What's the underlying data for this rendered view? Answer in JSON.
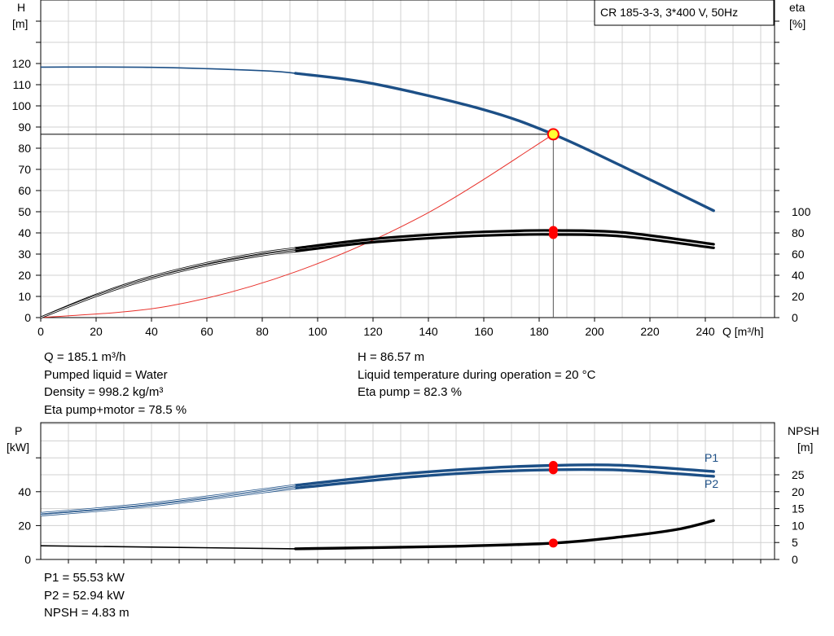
{
  "title_box": "CR 185-3-3, 3*400 V, 50Hz",
  "colors": {
    "head": "#1c4f86",
    "power": "#1c4f86",
    "efficiency": "#000000",
    "npsh": "#000000",
    "system": "#e8302a",
    "duty_point": "#ff0000",
    "duty_point_fill": "#ffff33",
    "grid": "#d0d0d0"
  },
  "labels": {
    "h_axis": "H",
    "h_unit": "[m]",
    "eta_axis": "eta",
    "eta_unit": "[%]",
    "q_axis": "Q [m³/h]",
    "p_axis": "P",
    "p_unit": "[kW]",
    "npsh_axis": "NPSH",
    "npsh_unit": "[m]",
    "p1": "P1",
    "p2": "P2"
  },
  "info_top_left": [
    "Q = 185.1 m³/h",
    "Pumped liquid = Water",
    "Density = 998.2 kg/m³",
    "Eta pump+motor = 78.5 %"
  ],
  "info_top_right": [
    "H = 86.57 m",
    "Liquid temperature during operation = 20 °C",
    "Eta pump = 82.3 %"
  ],
  "info_bottom": [
    "P1 = 55.53 kW",
    "P2 = 52.94 kW",
    "NPSH = 4.83 m"
  ],
  "chart_data": [
    {
      "type": "line",
      "title": "CR 185-3-3, 3*400 V, 50Hz",
      "xlabel": "Q [m³/h]",
      "ylabel": "H [m]",
      "y2label": "eta [%]",
      "xlim": [
        0,
        260
      ],
      "ylim": [
        0,
        120
      ],
      "y2lim": [
        0,
        100
      ],
      "x_ticks": [
        0,
        20,
        40,
        60,
        80,
        100,
        120,
        140,
        160,
        180,
        200,
        220,
        240
      ],
      "y_ticks": [
        0,
        10,
        20,
        30,
        40,
        50,
        60,
        70,
        80,
        90,
        100,
        110,
        120
      ],
      "y2_ticks": [
        0,
        20,
        40,
        60,
        80,
        100
      ],
      "grid": true,
      "duty_point": {
        "x": 185.1,
        "y": 86.57
      },
      "series": [
        {
          "axis": "H",
          "x": [
            0,
            40,
            80,
            92,
            120,
            160,
            185.1,
            210,
            243
          ],
          "y": [
            118.3,
            118.2,
            116.6,
            115.4,
            110.5,
            98.2,
            86.57,
            71.5,
            50.5
          ],
          "thin_until": 92
        },
        {
          "axis": "eta",
          "x": [
            0,
            20,
            40,
            60,
            80,
            92,
            120,
            150,
            170,
            185.1,
            210,
            243
          ],
          "y": [
            0,
            21.5,
            38.6,
            51.5,
            61.3,
            65.5,
            74.2,
            79.8,
            81.8,
            82.3,
            80.5,
            69.3
          ],
          "thin_until": 92
        },
        {
          "axis": "eta",
          "x": [
            0,
            20,
            40,
            60,
            80,
            92,
            120,
            150,
            170,
            185.1,
            210,
            243
          ],
          "y": [
            0,
            20.5,
            37,
            49.5,
            59,
            62.8,
            71.2,
            76.4,
            78.2,
            78.5,
            76.8,
            65.9
          ],
          "thin_until": 92
        },
        {
          "axis": "H",
          "x": [
            0,
            46,
            92,
            139,
            185.1
          ],
          "y": [
            0,
            5.4,
            21.6,
            48.9,
            86.57
          ],
          "thin_until": 186
        }
      ],
      "duty_markers": [
        {
          "axis": "eta",
          "y": 82.3
        },
        {
          "axis": "eta",
          "y": 78.5
        }
      ]
    },
    {
      "type": "line",
      "ylabel": "P [kW]",
      "y2label": "NPSH [m]",
      "xlim": [
        0,
        260
      ],
      "ylim": [
        0,
        60
      ],
      "y2lim": [
        0,
        30
      ],
      "y_ticks": [
        0,
        20,
        40
      ],
      "y2_ticks": [
        0,
        5,
        10,
        15,
        20,
        25
      ],
      "grid": true,
      "series": [
        {
          "name": "P1",
          "axis": "P",
          "x": [
            0,
            40,
            92,
            130,
            160,
            185.1,
            210,
            243
          ],
          "y": [
            27.3,
            33.1,
            43.8,
            50.4,
            53.9,
            55.53,
            55.6,
            51.9
          ],
          "thin_until": 92
        },
        {
          "name": "P2",
          "axis": "P",
          "x": [
            0,
            40,
            92,
            130,
            160,
            185.1,
            210,
            243
          ],
          "y": [
            26.1,
            31.7,
            42.1,
            48.2,
            51.6,
            52.94,
            52.7,
            49.1
          ],
          "thin_until": 92
        },
        {
          "axis": "NPSH",
          "x": [
            0,
            92,
            150,
            185.1,
            210,
            230,
            243
          ],
          "y": [
            4.05,
            3.15,
            3.9,
            4.83,
            6.7,
            8.9,
            11.5
          ],
          "thin_until": 92
        }
      ],
      "duty_markers": [
        {
          "axis": "P",
          "y": 55.53
        },
        {
          "axis": "P",
          "y": 52.94
        },
        {
          "axis": "NPSH",
          "y": 4.83
        }
      ]
    }
  ]
}
